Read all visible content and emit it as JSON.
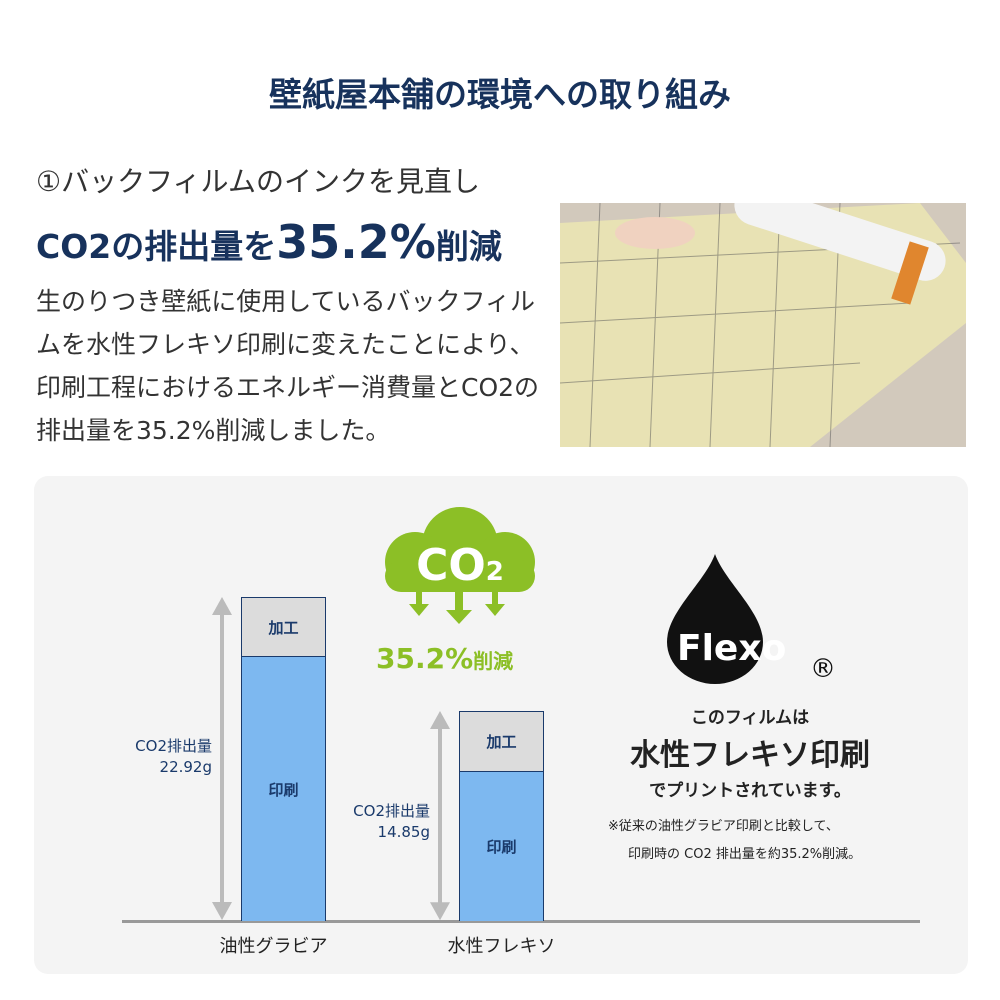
{
  "title": "壁紙屋本舗の環境への取り組み",
  "section": {
    "heading": "①バックフィルムのインクを見直し",
    "claim_prefix": "CO2の排出量を",
    "claim_value": "35.2%",
    "claim_suffix": "削減",
    "body": "生のりつき壁紙に使用しているバックフィルムを水性フレキソ印刷に変えたことにより、印刷工程におけるエネルギー消費量とCO2の排出量を35.2%削減しました。"
  },
  "cloud": {
    "text": "CO",
    "sub": "2",
    "reduction": "35.2%",
    "reduction_suffix": "削減"
  },
  "flexo": {
    "logo": "Flexo",
    "registered": "®",
    "line1": "このフィルムは",
    "line2": "水性フレキソ印刷",
    "line3": "でプリントされています。",
    "note1": "※従来の油性グラビア印刷と比較して、",
    "note2": "印刷時の CO2 排出量を約35.2%削減。"
  },
  "colors": {
    "title": "#17325c",
    "print": "#7db8f0",
    "process": "#dcdcdc",
    "green": "#8cbf26"
  },
  "chart_data": {
    "type": "bar",
    "stacked": true,
    "categories": [
      "油性グラビア",
      "水性フレキソ"
    ],
    "series": [
      {
        "name": "印刷",
        "values": [
          18.7,
          10.6
        ]
      },
      {
        "name": "加工",
        "values": [
          4.22,
          4.25
        ]
      }
    ],
    "totals": [
      22.92,
      14.85
    ],
    "total_labels": [
      {
        "label": "CO2排出量",
        "value": "22.92g"
      },
      {
        "label": "CO2排出量",
        "value": "14.85g"
      }
    ],
    "unit": "g"
  }
}
